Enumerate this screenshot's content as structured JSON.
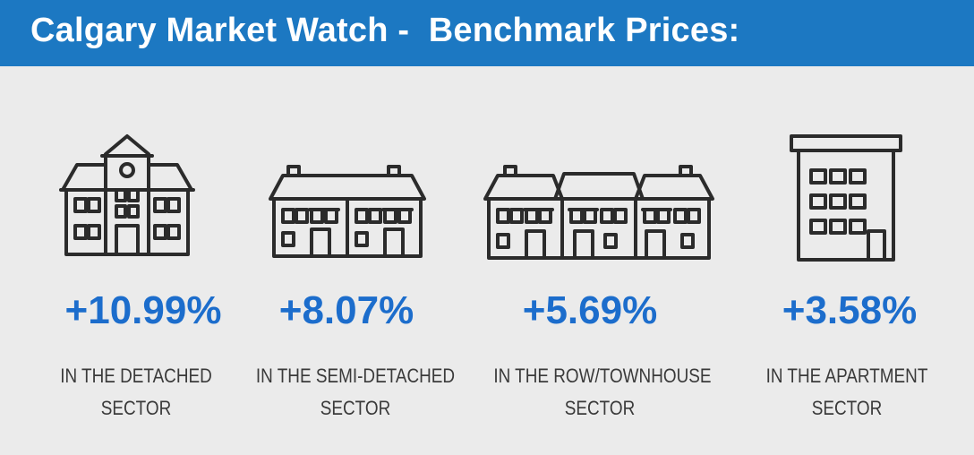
{
  "header": {
    "title": "Calgary Market Watch -  Benchmark Prices:",
    "background": "#1c78c2"
  },
  "accent_color": "#1c6dcc",
  "sectors": [
    {
      "icon": "detached-house-icon",
      "change": "+10.99%",
      "caption_line1": "IN THE DETACHED",
      "caption_line2": "SECTOR"
    },
    {
      "icon": "semi-detached-house-icon",
      "change": "+8.07%",
      "caption_line1": "IN THE SEMI-DETACHED",
      "caption_line2": "SECTOR"
    },
    {
      "icon": "townhouse-icon",
      "change": "+5.69%",
      "caption_line1": "IN THE ROW/TOWNHOUSE",
      "caption_line2": "SECTOR"
    },
    {
      "icon": "apartment-building-icon",
      "change": "+3.58%",
      "caption_line1": "IN THE APARTMENT",
      "caption_line2": "SECTOR"
    }
  ]
}
